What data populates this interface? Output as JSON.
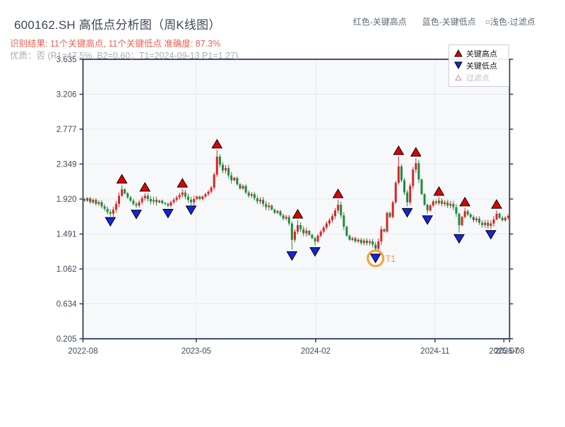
{
  "header": {
    "title": "600162.SH 高低点分析图（周K线图）",
    "result_line": "识别结果: 11个关键高点, 11个关键低点  准确度: 87.3%",
    "quality_line": "优质：否 (R1=47.5%, B2=0.60；T1=2024-09-13 P1=1.27)",
    "top_legend": [
      {
        "label": "红色-关键高点"
      },
      {
        "label": "蓝色-关键低点"
      },
      {
        "label": "○浅色-过滤点"
      }
    ]
  },
  "legend_box": {
    "items": [
      {
        "marker": "key-high-up-triangle",
        "label": "关键高点"
      },
      {
        "marker": "key-low-down-triangle",
        "label": "关键低点"
      },
      {
        "marker": "filtered-hollow-triangle",
        "label": "过滤点"
      }
    ]
  },
  "chart_data": {
    "type": "candlestick",
    "title": "600162.SH 高低点分析图（周K线图）",
    "x_axis": "weekly dates 2022-08 to 2025-08",
    "y_ticks": [
      "3.635",
      "3.206",
      "2.777",
      "2.349",
      "1.920",
      "1.491",
      "1.062",
      "0.634",
      "0.205"
    ],
    "x_ticks": [
      {
        "label": "2022-08",
        "f": 0.0
      },
      {
        "label": "2023-05",
        "f": 0.2657
      },
      {
        "label": "2024-02",
        "f": 0.5455
      },
      {
        "label": "2024-11",
        "f": 0.8253
      },
      {
        "label": "2025-07",
        "f": 0.9867
      },
      {
        "label": "2025-08",
        "f": 1.0
      }
    ],
    "grid_x": [
      0.2657,
      0.5455,
      0.8253
    ],
    "open_first": 1.92,
    "closes": [
      1.9,
      1.93,
      1.88,
      1.91,
      1.86,
      1.88,
      1.83,
      1.8,
      1.76,
      1.74,
      1.79,
      1.86,
      1.96,
      2.04,
      1.99,
      1.94,
      1.9,
      1.86,
      1.84,
      1.88,
      1.93,
      1.96,
      1.92,
      1.89,
      1.91,
      1.88,
      1.9,
      1.87,
      1.86,
      1.84,
      1.88,
      1.91,
      1.94,
      1.97,
      2.0,
      1.95,
      1.91,
      1.88,
      1.92,
      1.95,
      1.92,
      1.95,
      1.98,
      2.01,
      2.06,
      2.22,
      2.44,
      2.34,
      2.27,
      2.3,
      2.21,
      2.15,
      2.18,
      2.1,
      2.05,
      2.08,
      2.0,
      1.96,
      1.98,
      1.93,
      1.89,
      1.91,
      1.86,
      1.82,
      1.84,
      1.79,
      1.75,
      1.77,
      1.72,
      1.68,
      1.7,
      1.62,
      1.42,
      1.52,
      1.6,
      1.55,
      1.5,
      1.53,
      1.48,
      1.44,
      1.4,
      1.47,
      1.52,
      1.57,
      1.62,
      1.66,
      1.71,
      1.78,
      1.85,
      1.72,
      1.58,
      1.47,
      1.42,
      1.44,
      1.4,
      1.42,
      1.38,
      1.41,
      1.38,
      1.4,
      1.36,
      1.31,
      1.4,
      1.55,
      1.52,
      1.75,
      1.7,
      1.88,
      2.12,
      2.32,
      2.15,
      2.0,
      1.88,
      2.08,
      2.28,
      2.36,
      2.16,
      1.98,
      1.85,
      1.78,
      1.84,
      1.89,
      1.87,
      1.9,
      1.86,
      1.88,
      1.84,
      1.86,
      1.82,
      1.74,
      1.6,
      1.7,
      1.77,
      1.73,
      1.7,
      1.66,
      1.68,
      1.63,
      1.6,
      1.63,
      1.59,
      1.62,
      1.67,
      1.74,
      1.69,
      1.66,
      1.69,
      1.71
    ],
    "wick_base": 0.012,
    "wick_var": 0.03,
    "key_highs": [
      {
        "i": 13,
        "v": 2.09
      },
      {
        "i": 21,
        "v": 1.99
      },
      {
        "i": 34,
        "v": 2.04
      },
      {
        "i": 46,
        "v": 2.52
      },
      {
        "i": 74,
        "v": 1.66
      },
      {
        "i": 88,
        "v": 1.91
      },
      {
        "i": 109,
        "v": 2.44
      },
      {
        "i": 115,
        "v": 2.42
      },
      {
        "i": 123,
        "v": 1.94
      },
      {
        "i": 132,
        "v": 1.81
      },
      {
        "i": 143,
        "v": 1.78
      }
    ],
    "key_lows": [
      {
        "i": 9,
        "v": 1.72
      },
      {
        "i": 18,
        "v": 1.81
      },
      {
        "i": 29,
        "v": 1.82
      },
      {
        "i": 37,
        "v": 1.86
      },
      {
        "i": 72,
        "v": 1.3
      },
      {
        "i": 80,
        "v": 1.35
      },
      {
        "i": 101,
        "v": 1.27
      },
      {
        "i": 112,
        "v": 1.83
      },
      {
        "i": 119,
        "v": 1.74
      },
      {
        "i": 130,
        "v": 1.51
      },
      {
        "i": 141,
        "v": 1.56
      }
    ],
    "t1": {
      "i": 101,
      "label": "T1"
    },
    "colors": {
      "up": "#d92525",
      "down": "#1e8b3e",
      "key_high": "#e00000",
      "key_low": "#1525dd",
      "marker_edge": "#000000",
      "filter_edge": "#d98f8f",
      "filter_fill": "#fff6f6",
      "t1": "#f2a137",
      "grid": "#e7eaef",
      "plot_bg": "#f7f8fa",
      "spine": "#2f3e53",
      "tick_text": "#3f4a5a"
    }
  }
}
